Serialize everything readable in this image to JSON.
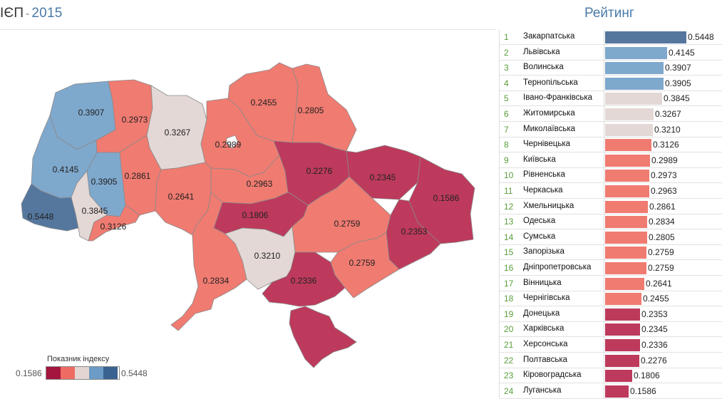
{
  "header": {
    "prefix": "ІЄП",
    "dash": "-",
    "year": "2015",
    "ranking_title": "Рейтинг"
  },
  "legend": {
    "title": "Показник індексу",
    "min": "0.1586",
    "max": "0.5448",
    "colors": [
      "#a5163f",
      "#ee6b63",
      "#e3d5d1",
      "#6b9bc6",
      "#3a6290"
    ]
  },
  "colors": {
    "blue_dark": "#55779e",
    "blue_light": "#7fa8cd",
    "grey": "#e3d8d5",
    "salmon": "#f07b71",
    "crimson": "#bd3a5c"
  },
  "regions": [
    {
      "name": "Закарпатська",
      "value": "0.5448",
      "color": "#55779e"
    },
    {
      "name": "Львівська",
      "value": "0.4145",
      "color": "#7fa8cd"
    },
    {
      "name": "Волинська",
      "value": "0.3907",
      "color": "#7fa8cd"
    },
    {
      "name": "Тернопільська",
      "value": "0.3905",
      "color": "#7fa8cd"
    },
    {
      "name": "Івано-Франківська",
      "value": "0.3845",
      "color": "#e3d8d5"
    },
    {
      "name": "Житомирська",
      "value": "0.3267",
      "color": "#e3d8d5"
    },
    {
      "name": "Миколаївська",
      "value": "0.3210",
      "color": "#e3d8d5"
    },
    {
      "name": "Чернівецька",
      "value": "0.3126",
      "color": "#f07b71"
    },
    {
      "name": "Київська",
      "value": "0.2989",
      "color": "#f07b71"
    },
    {
      "name": "Рівненська",
      "value": "0.2973",
      "color": "#f07b71"
    },
    {
      "name": "Черкаська",
      "value": "0.2963",
      "color": "#f07b71"
    },
    {
      "name": "Хмельницька",
      "value": "0.2861",
      "color": "#f07b71"
    },
    {
      "name": "Одеська",
      "value": "0.2834",
      "color": "#f07b71"
    },
    {
      "name": "Сумська",
      "value": "0.2805",
      "color": "#f07b71"
    },
    {
      "name": "Запорізька",
      "value": "0.2759",
      "color": "#f07b71"
    },
    {
      "name": "Дніпропетровська",
      "value": "0.2759",
      "color": "#f07b71"
    },
    {
      "name": "Вінницька",
      "value": "0.2641",
      "color": "#f07b71"
    },
    {
      "name": "Чернігівська",
      "value": "0.2455",
      "color": "#f07b71"
    },
    {
      "name": "Донецька",
      "value": "0.2353",
      "color": "#bd3a5c"
    },
    {
      "name": "Харківська",
      "value": "0.2345",
      "color": "#bd3a5c"
    },
    {
      "name": "Херсонська",
      "value": "0.2336",
      "color": "#bd3a5c"
    },
    {
      "name": "Полтавська",
      "value": "0.2276",
      "color": "#bd3a5c"
    },
    {
      "name": "Кіровоградська",
      "value": "0.1806",
      "color": "#bd3a5c"
    },
    {
      "name": "Луганська",
      "value": "0.1586",
      "color": "#bd3a5c"
    }
  ]
}
